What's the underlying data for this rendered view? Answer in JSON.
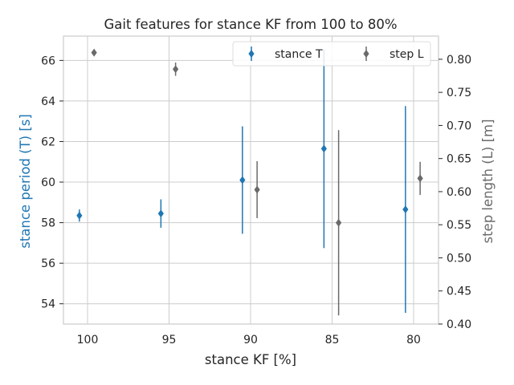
{
  "chart_data": {
    "type": "scatter",
    "title": "Gait features for stance KF from 100 to 80%",
    "xlabel": "stance KF [%]",
    "ylabel_left": "stance period (T) [s]",
    "ylabel_right": "step length (L) [m]",
    "x_categories": [
      100,
      95,
      90,
      85,
      80
    ],
    "x_reversed": true,
    "ylim_left": [
      53.0,
      67.2
    ],
    "ylim_right": [
      0.4,
      0.835
    ],
    "left_ticks": [
      54,
      56,
      58,
      60,
      62,
      64,
      66
    ],
    "right_ticks": [
      0.4,
      0.45,
      0.5,
      0.55,
      0.6,
      0.65,
      0.7,
      0.75,
      0.8
    ],
    "right_tick_labels": [
      "0.40",
      "0.45",
      "0.50",
      "0.55",
      "0.60",
      "0.65",
      "0.70",
      "0.75",
      "0.80"
    ],
    "grid": true,
    "legend_placement": "top-right",
    "legend_columns": 2,
    "marker": "diamond",
    "series": [
      {
        "name": "stance T",
        "color": "#1f77b4",
        "axis": "left",
        "x": [
          100.5,
          95.5,
          90.5,
          85.5,
          80.5
        ],
        "y": [
          58.35,
          58.45,
          60.1,
          61.65,
          58.65
        ],
        "err": [
          0.3,
          0.7,
          2.65,
          4.9,
          5.1
        ]
      },
      {
        "name": "step L",
        "color": "#6a6a6a",
        "axis": "right",
        "x": [
          99.6,
          94.6,
          89.6,
          84.6,
          79.6
        ],
        "y": [
          0.81,
          0.785,
          0.603,
          0.553,
          0.62
        ],
        "err": [
          0.004,
          0.01,
          0.043,
          0.14,
          0.025
        ]
      }
    ]
  }
}
